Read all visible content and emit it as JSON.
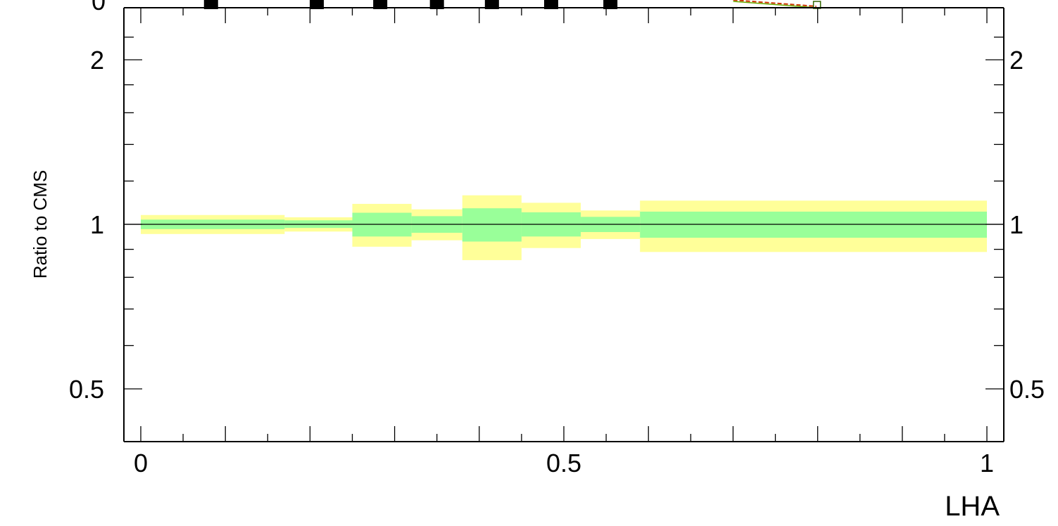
{
  "chart_data": {
    "type": "area",
    "xlabel": "LHA",
    "ylabel": "Ratio to CMS",
    "xlim": [
      -0.02,
      1.02
    ],
    "ylim": [
      0.34,
      2.28
    ],
    "y_scale": "log",
    "grid": false,
    "reference_line": 1,
    "x_ticks": [
      {
        "value": 0,
        "label": "0"
      },
      {
        "value": 0.5,
        "label": "0.5"
      },
      {
        "value": 1,
        "label": "1"
      }
    ],
    "y_ticks": [
      {
        "value": 0.5,
        "label": "0.5"
      },
      {
        "value": 1,
        "label": "1"
      },
      {
        "value": 2,
        "label": "2"
      }
    ],
    "bins": [
      {
        "x_low": 0.0,
        "x_high": 0.17,
        "inner_low": 0.98,
        "inner_high": 1.02,
        "outer_low": 0.96,
        "outer_high": 1.04
      },
      {
        "x_low": 0.17,
        "x_high": 0.25,
        "inner_low": 0.985,
        "inner_high": 1.017,
        "outer_low": 0.97,
        "outer_high": 1.03
      },
      {
        "x_low": 0.25,
        "x_high": 0.32,
        "inner_low": 0.95,
        "inner_high": 1.05,
        "outer_low": 0.91,
        "outer_high": 1.09
      },
      {
        "x_low": 0.32,
        "x_high": 0.38,
        "inner_low": 0.965,
        "inner_high": 1.035,
        "outer_low": 0.935,
        "outer_high": 1.065
      },
      {
        "x_low": 0.38,
        "x_high": 0.45,
        "inner_low": 0.93,
        "inner_high": 1.07,
        "outer_low": 0.86,
        "outer_high": 1.13
      },
      {
        "x_low": 0.45,
        "x_high": 0.52,
        "inner_low": 0.95,
        "inner_high": 1.052,
        "outer_low": 0.905,
        "outer_high": 1.095
      },
      {
        "x_low": 0.52,
        "x_high": 0.59,
        "inner_low": 0.968,
        "inner_high": 1.032,
        "outer_low": 0.94,
        "outer_high": 1.06
      },
      {
        "x_low": 0.59,
        "x_high": 1.0,
        "inner_low": 0.945,
        "inner_high": 1.055,
        "outer_low": 0.89,
        "outer_high": 1.105
      }
    ],
    "colors": {
      "inner_band": "#99ff99",
      "outer_band": "#ffff99",
      "axis": "#000000",
      "marker": "#000000"
    },
    "top_panel_markers_x": [
      0.083,
      0.208,
      0.283,
      0.35,
      0.415,
      0.485,
      0.555
    ],
    "top_panel_curve_end_x": 0.8
  }
}
